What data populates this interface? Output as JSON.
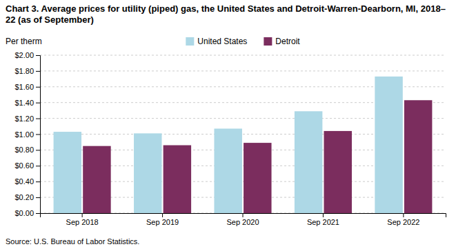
{
  "chart_data": {
    "type": "bar",
    "title": "Chart 3. Average prices for utility (piped) gas, the United States and Detroit-Warren-Dearborn, MI, 2018–22 (as of September)",
    "ylabel": "Per therm",
    "source": "Source: U.S. Bureau of Labor Statistics.",
    "categories": [
      "Sep 2018",
      "Sep 2019",
      "Sep 2020",
      "Sep 2021",
      "Sep 2022"
    ],
    "series": [
      {
        "name": "United States",
        "color": "#ADD8E6",
        "values": [
          1.03,
          1.01,
          1.07,
          1.29,
          1.73
        ]
      },
      {
        "name": "Detroit",
        "color": "#7B2D5E",
        "values": [
          0.85,
          0.86,
          0.89,
          1.04,
          1.43
        ]
      }
    ],
    "ylim": [
      0,
      2.0
    ],
    "yticks": [
      {
        "value": 0.0,
        "label": "$0.00"
      },
      {
        "value": 0.2,
        "label": "$0.20"
      },
      {
        "value": 0.4,
        "label": "$0.40"
      },
      {
        "value": 0.6,
        "label": "$0.60"
      },
      {
        "value": 0.8,
        "label": "$0.80"
      },
      {
        "value": 1.0,
        "label": "$1.00"
      },
      {
        "value": 1.2,
        "label": "$1.20"
      },
      {
        "value": 1.4,
        "label": "$1.40"
      },
      {
        "value": 1.6,
        "label": "$1.60"
      },
      {
        "value": 1.8,
        "label": "$1.80"
      },
      {
        "value": 2.0,
        "label": "$2.00"
      }
    ],
    "grid": true,
    "legend": "top"
  }
}
